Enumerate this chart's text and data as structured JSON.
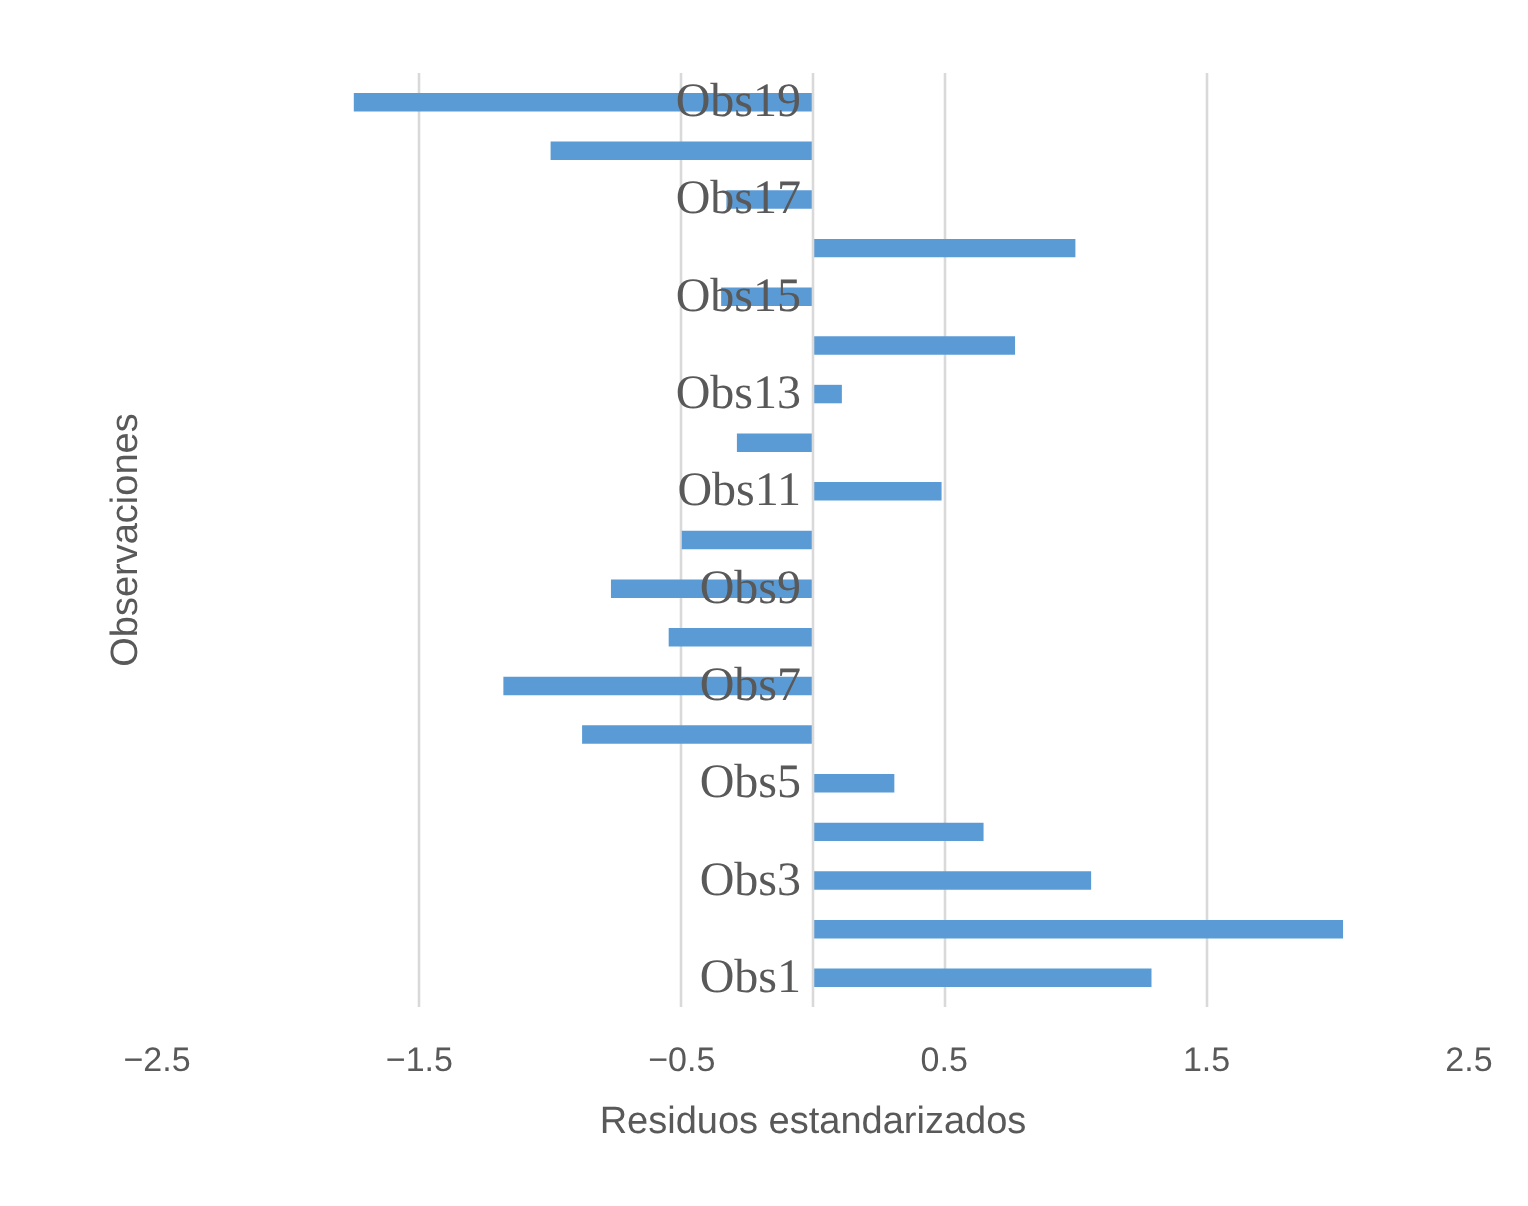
{
  "chart_data": {
    "type": "bar",
    "orientation": "horizontal",
    "xlabel": "Residuos estandarizados",
    "ylabel": "Observaciones",
    "categories": [
      "Obs19",
      null,
      "Obs17",
      null,
      "Obs15",
      null,
      "Obs13",
      null,
      "Obs11",
      null,
      "Obs9",
      null,
      "Obs7",
      null,
      "Obs5",
      null,
      "Obs3",
      null,
      "Obs1"
    ],
    "values": [
      -1.75,
      -1.0,
      -0.33,
      1.0,
      -0.35,
      0.77,
      0.11,
      -0.29,
      0.49,
      -0.5,
      -0.77,
      -0.55,
      -1.18,
      -0.88,
      0.31,
      0.65,
      1.06,
      2.02,
      1.29
    ],
    "color": "#5b9bd5",
    "xlim": [
      -2.5,
      2.5
    ],
    "xticks": [
      -2.5,
      -1.5,
      -0.5,
      0.5,
      1.5,
      2.5
    ],
    "grid": "x"
  }
}
